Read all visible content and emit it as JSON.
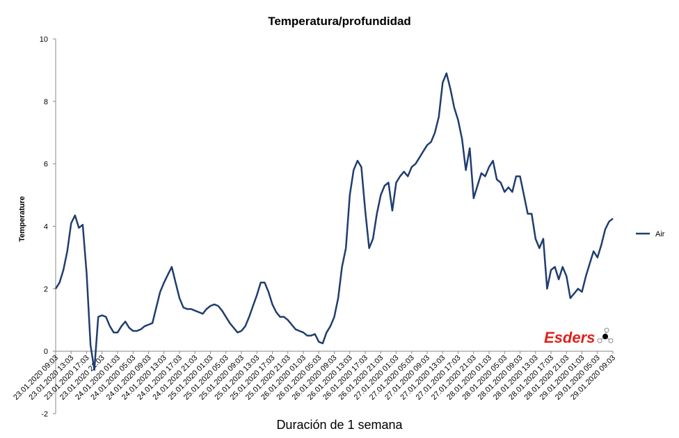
{
  "chart_data": {
    "type": "line",
    "title": "Temperatura/profundidad",
    "xlabel": "Duración de 1 semana",
    "ylabel": "Temperature",
    "logo": "Esders",
    "categories": [
      "23.01.2020 09:03",
      null,
      null,
      null,
      "23.01.2020 13:03",
      null,
      null,
      null,
      "23.01.2020 17:03",
      null,
      null,
      null,
      "23.01.2020 21:03",
      null,
      null,
      null,
      "24.01.2020 01:03",
      null,
      null,
      null,
      "24.01.2020 05:03",
      null,
      null,
      null,
      "24.01.2020 09:03",
      null,
      null,
      null,
      "24.01.2020 13:03",
      null,
      null,
      null,
      "24.01.2020 17:03",
      null,
      null,
      null,
      "24.01.2020 21:03",
      null,
      null,
      null,
      "25.01.2020 01:03",
      null,
      null,
      null,
      "25.01.2020 05:03",
      null,
      null,
      null,
      "25.01.2020 09:03",
      null,
      null,
      null,
      "25.01.2020 13:03",
      null,
      null,
      null,
      "25.01.2020 17:03",
      null,
      null,
      null,
      "25.01.2020 21:03",
      null,
      null,
      null,
      "26.01.2020 01:03",
      null,
      null,
      null,
      "26.01.2020 05:03",
      null,
      null,
      null,
      "26.01.2020 09:03",
      null,
      null,
      null,
      "26.01.2020 13:03",
      null,
      null,
      null,
      "26.01.2020 17:03",
      null,
      null,
      null,
      "26.01.2020 21:03",
      null,
      null,
      null,
      "27.01.2020 01:03",
      null,
      null,
      null,
      "27.01.2020 05:03",
      null,
      null,
      null,
      "27.01.2020 09:03",
      null,
      null,
      null,
      "27.01.2020 13:03",
      null,
      null,
      null,
      "27.01.2020 17:03",
      null,
      null,
      null,
      "27.01.2020 21:03",
      null,
      null,
      null,
      "28.01.2020 01:03",
      null,
      null,
      null,
      "28.01.2020 05:03",
      null,
      null,
      null,
      "28.01.2020 09:03",
      null,
      null,
      null,
      "28.01.2020 13:03",
      null,
      null,
      null,
      "28.01.2020 17:03",
      null,
      null,
      null,
      "28.01.2020 21:03",
      null,
      null,
      null,
      "29.01.2020 01:03",
      null,
      null,
      null,
      "29.01.2020 05:03",
      null,
      null,
      null,
      "29.01.2020 09:03"
    ],
    "series": [
      {
        "name": "Air",
        "color": "#1f3d6e",
        "values": [
          2.0,
          2.2,
          2.6,
          3.2,
          4.1,
          4.35,
          3.95,
          4.05,
          2.5,
          0.2,
          -0.6,
          1.1,
          1.15,
          1.1,
          0.8,
          0.6,
          0.6,
          0.8,
          0.95,
          0.75,
          0.65,
          0.65,
          0.7,
          0.8,
          0.85,
          0.9,
          1.4,
          1.9,
          2.2,
          2.45,
          2.7,
          2.2,
          1.7,
          1.4,
          1.35,
          1.35,
          1.3,
          1.25,
          1.2,
          1.35,
          1.45,
          1.5,
          1.45,
          1.3,
          1.1,
          0.9,
          0.75,
          0.6,
          0.65,
          0.8,
          1.1,
          1.45,
          1.8,
          2.2,
          2.2,
          1.9,
          1.5,
          1.25,
          1.1,
          1.1,
          1.0,
          0.85,
          0.7,
          0.65,
          0.6,
          0.5,
          0.5,
          0.55,
          0.3,
          0.25,
          0.6,
          0.8,
          1.1,
          1.7,
          2.7,
          3.3,
          5.0,
          5.8,
          6.1,
          5.9,
          4.5,
          3.3,
          3.6,
          4.4,
          5.0,
          5.3,
          5.4,
          4.5,
          5.4,
          5.6,
          5.75,
          5.6,
          5.9,
          6.0,
          6.2,
          6.4,
          6.6,
          6.7,
          7.0,
          7.5,
          8.6,
          8.9,
          8.4,
          7.8,
          7.4,
          6.8,
          5.8,
          6.5,
          4.9,
          5.3,
          5.7,
          5.6,
          5.9,
          6.1,
          5.5,
          5.4,
          5.1,
          5.25,
          5.1,
          5.6,
          5.6,
          5.0,
          4.4,
          4.4,
          3.6,
          3.3,
          3.6,
          2.0,
          2.6,
          2.7,
          2.3,
          2.7,
          2.4,
          1.7,
          1.85,
          2.0,
          1.9,
          2.4,
          2.8,
          3.2,
          3.0,
          3.4,
          3.9,
          4.15,
          4.25
        ]
      }
    ],
    "ylim": [
      -2,
      10
    ],
    "yticks": [
      -2,
      0,
      2,
      4,
      6,
      8,
      10
    ],
    "grid": false,
    "legend": "right"
  }
}
